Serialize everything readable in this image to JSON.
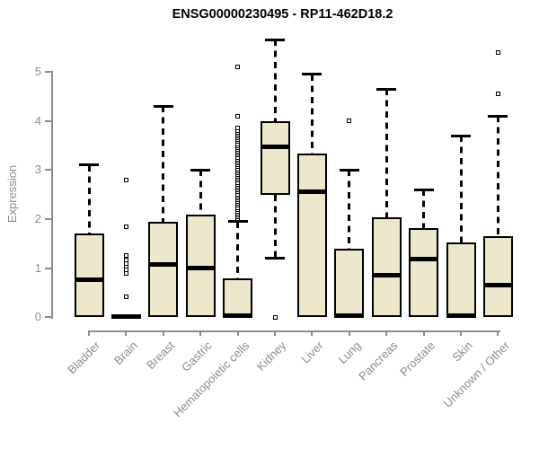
{
  "chart_data": {
    "type": "boxplot",
    "title": "ENSG00000230495 - RP11-462D18.2",
    "ylabel": "Expression",
    "xlabel": "",
    "ylim": [
      0,
      5
    ],
    "yticks": [
      0,
      1,
      2,
      3,
      4,
      5
    ],
    "grid": false,
    "legend": "none",
    "colors": {
      "box_fill": "#EDE8CC",
      "box_stroke": "#000000",
      "median": "#000000",
      "axis": "#8C8C8C",
      "title": "#000000"
    },
    "categories": [
      "Bladder",
      "Brain",
      "Breast",
      "Gastric",
      "Hematopoietic cells",
      "Kidney",
      "Liver",
      "Lung",
      "Pancreas",
      "Prostate",
      "Skin",
      "Unknown / Other"
    ],
    "boxes": [
      {
        "category": "Bladder",
        "whisker_low": 0,
        "q1": 0,
        "median": 0.77,
        "q3": 1.7,
        "whisker_high": 3.1,
        "outliers": []
      },
      {
        "category": "Brain",
        "whisker_low": 0,
        "q1": 0,
        "median": 0.02,
        "q3": 0.04,
        "whisker_high": 0.04,
        "outliers": [
          2.8,
          1.85,
          1.25,
          1.17,
          1.1,
          1.03,
          0.96,
          0.9,
          0.42
        ]
      },
      {
        "category": "Breast",
        "whisker_low": 0,
        "q1": 0,
        "median": 1.07,
        "q3": 1.95,
        "whisker_high": 4.3,
        "outliers": []
      },
      {
        "category": "Gastric",
        "whisker_low": 0,
        "q1": 0,
        "median": 1.0,
        "q3": 2.1,
        "whisker_high": 3.0,
        "outliers": []
      },
      {
        "category": "Hematopoietic cells",
        "whisker_low": 0,
        "q1": 0,
        "median": 0.02,
        "q3": 0.8,
        "whisker_high": 1.95,
        "outliers": [
          5.1,
          4.1
        ],
        "outlier_band": {
          "from": 2.0,
          "to": 3.85,
          "count": 48
        }
      },
      {
        "category": "Kidney",
        "whisker_low": 1.2,
        "q1": 2.5,
        "median": 3.48,
        "q3": 4.0,
        "whisker_high": 5.65,
        "outliers": [
          0
        ]
      },
      {
        "category": "Liver",
        "whisker_low": 0,
        "q1": 0,
        "median": 2.55,
        "q3": 3.34,
        "whisker_high": 4.95,
        "outliers": []
      },
      {
        "category": "Lung",
        "whisker_low": 0,
        "q1": 0,
        "median": 0.02,
        "q3": 1.4,
        "whisker_high": 3.0,
        "outliers": [
          4.0
        ]
      },
      {
        "category": "Pancreas",
        "whisker_low": 0,
        "q1": 0,
        "median": 0.85,
        "q3": 2.03,
        "whisker_high": 4.65,
        "outliers": []
      },
      {
        "category": "Prostate",
        "whisker_low": 0,
        "q1": 0,
        "median": 1.18,
        "q3": 1.82,
        "whisker_high": 2.6,
        "outliers": []
      },
      {
        "category": "Skin",
        "whisker_low": 0,
        "q1": 0,
        "median": 0.02,
        "q3": 1.52,
        "whisker_high": 3.7,
        "outliers": []
      },
      {
        "category": "Unknown / Other",
        "whisker_low": 0,
        "q1": 0,
        "median": 0.65,
        "q3": 1.65,
        "whisker_high": 4.1,
        "outliers": [
          5.4,
          4.55
        ]
      }
    ]
  }
}
